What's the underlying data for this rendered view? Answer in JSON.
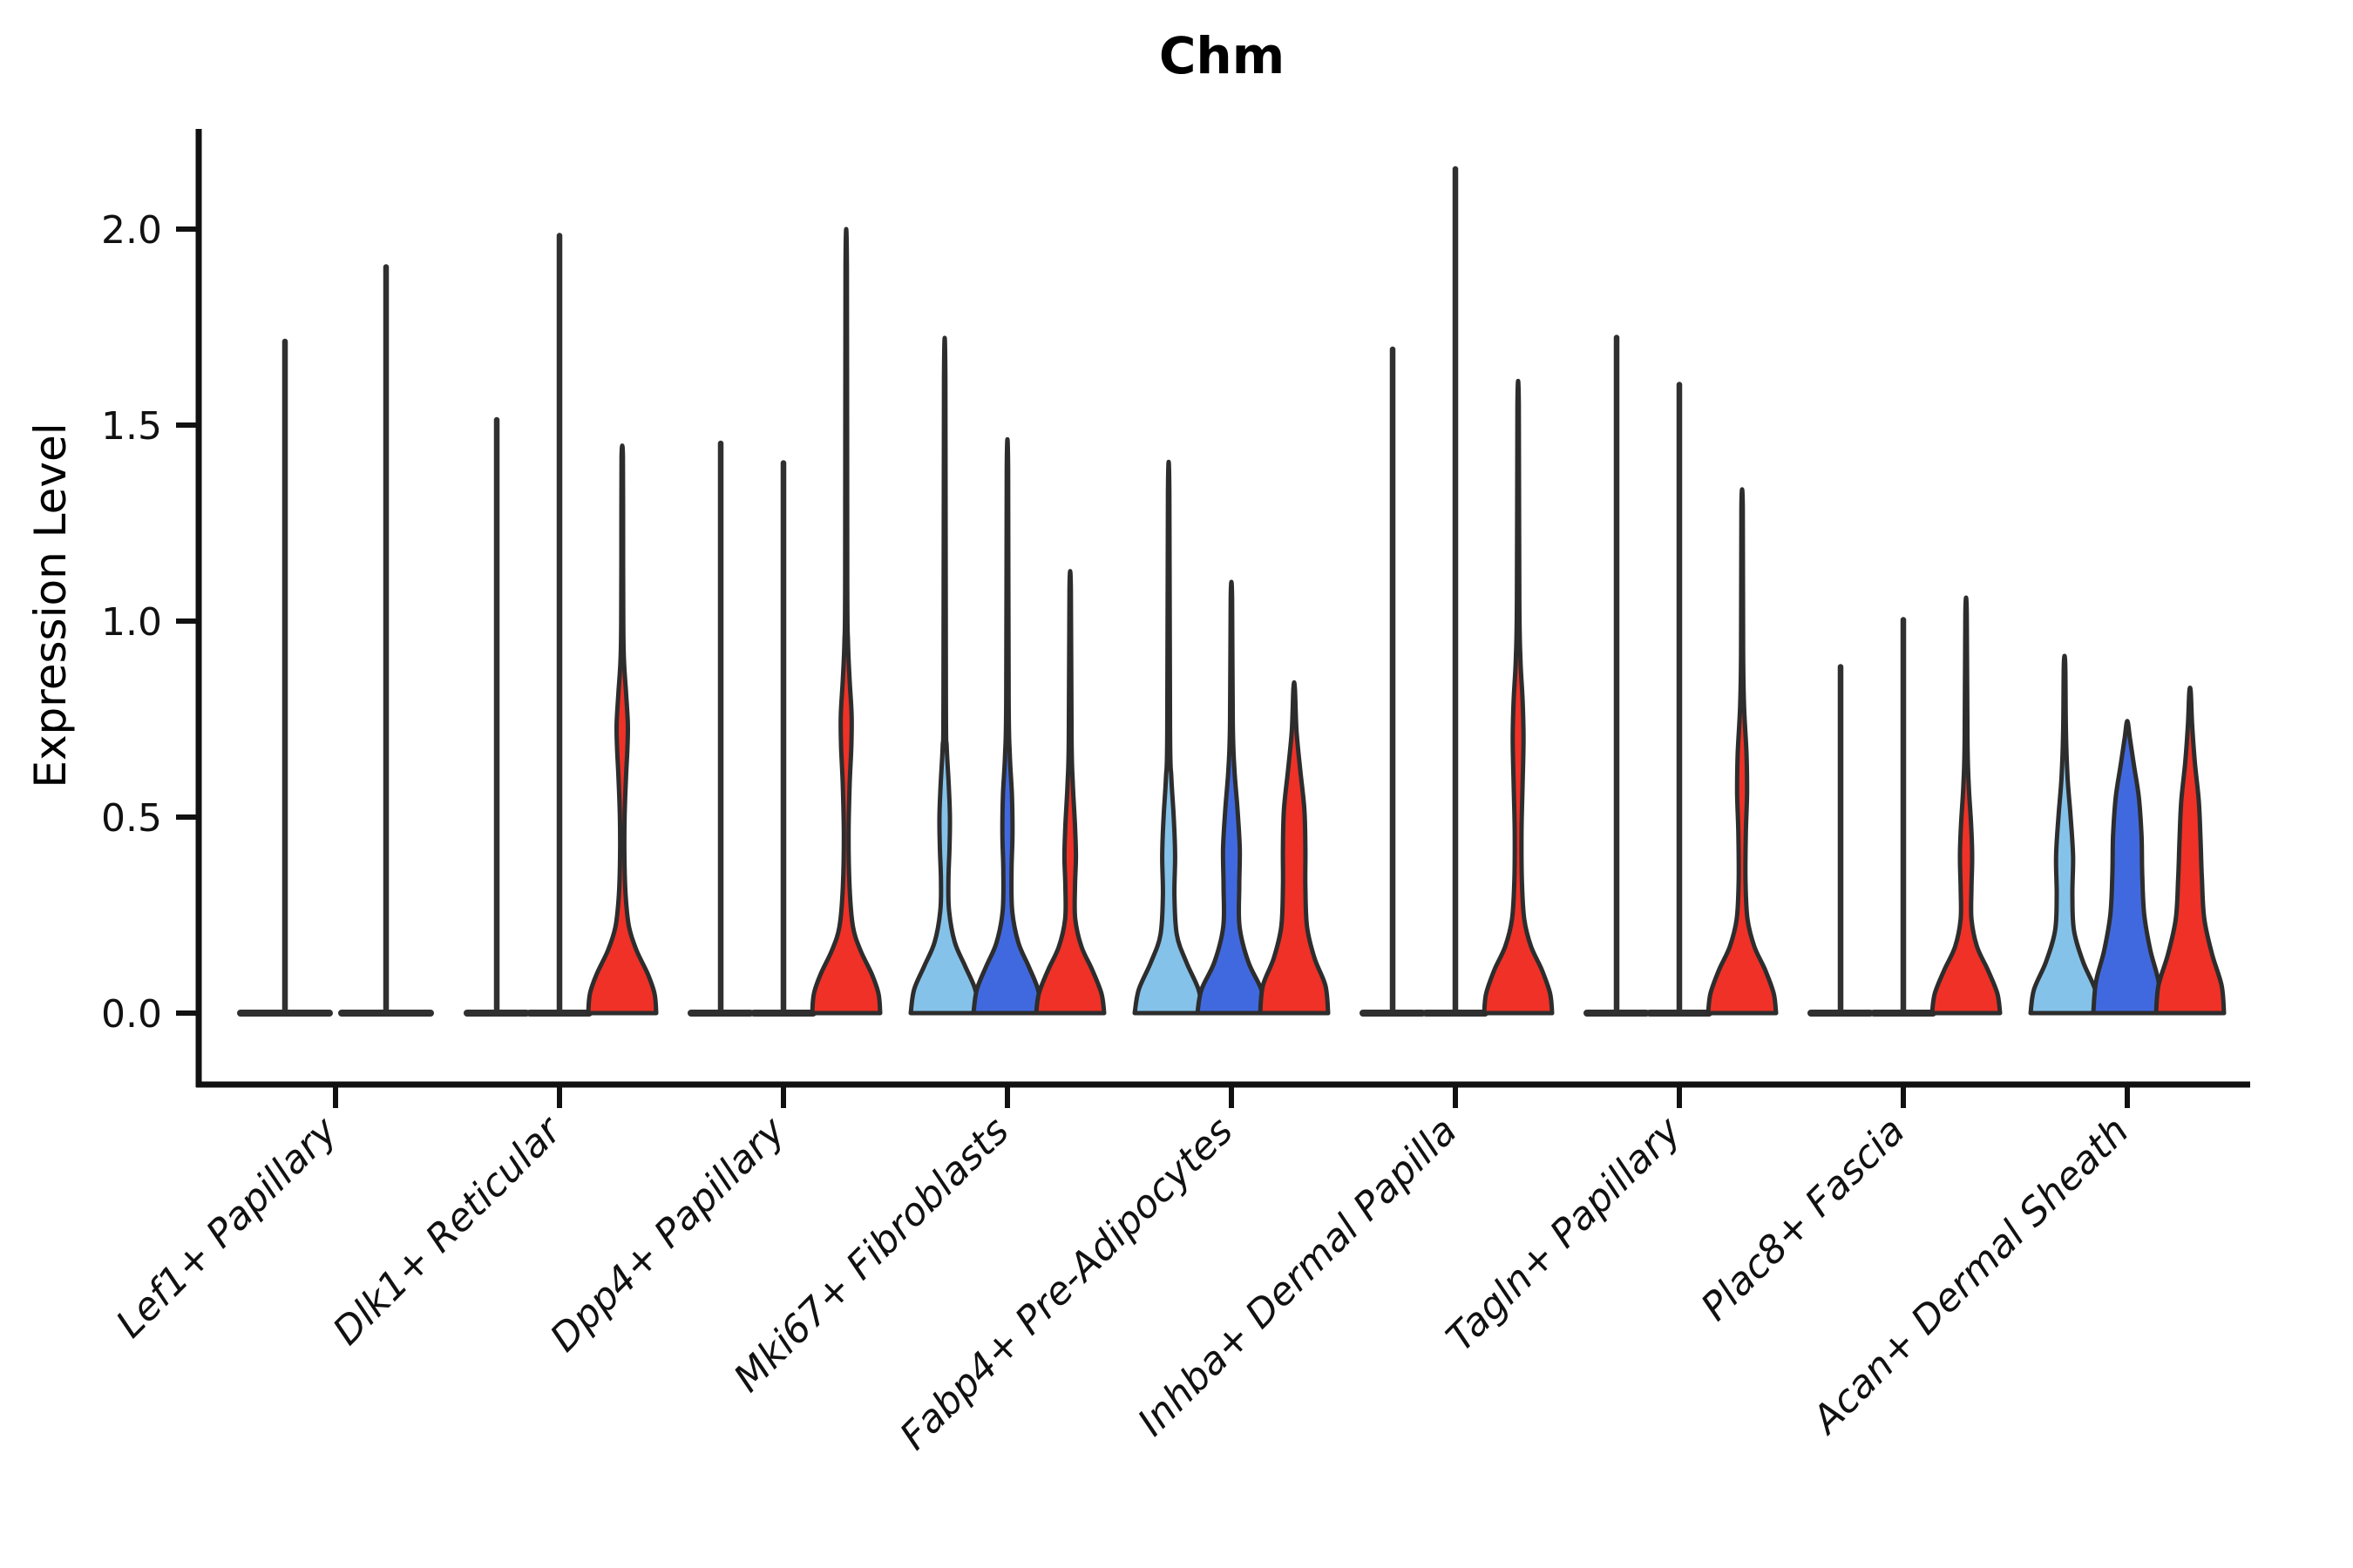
{
  "figure": {
    "title": "Chm",
    "ylabel": "Expression Level"
  },
  "chart_data": {
    "type": "violin",
    "title": "Chm",
    "xlabel": "",
    "ylabel": "Expression Level",
    "yticks": [
      0.0,
      0.5,
      1.0,
      1.5,
      2.0
    ],
    "ylim": [
      -0.18,
      2.25
    ],
    "grid": false,
    "legend": "none",
    "colors": {
      "lightblue": "#85C2E9",
      "darkblue": "#4169DF",
      "red": "#EF3127",
      "outline": "#2D2D2D",
      "spike": "#303030",
      "axis": "#111111"
    },
    "categories": [
      {
        "label": "Lef1+ Papillary",
        "violins": [
          {
            "kind": "spike",
            "color": null,
            "max": 1.72
          },
          {
            "kind": "spike",
            "color": null,
            "max": 1.91
          }
        ]
      },
      {
        "label": "Dlk1+ Reticular",
        "violins": [
          {
            "kind": "spike",
            "color": null,
            "max": 1.52
          },
          {
            "kind": "spike",
            "color": null,
            "max": 1.99
          },
          {
            "kind": "density",
            "color": "red",
            "max": 1.42,
            "profile": [
              [
                0,
                1.0
              ],
              [
                0.05,
                0.95
              ],
              [
                0.1,
                0.75
              ],
              [
                0.16,
                0.42
              ],
              [
                0.22,
                0.2
              ],
              [
                0.3,
                0.1
              ],
              [
                0.4,
                0.065
              ],
              [
                0.5,
                0.07
              ],
              [
                0.6,
                0.11
              ],
              [
                0.68,
                0.155
              ],
              [
                0.74,
                0.165
              ],
              [
                0.82,
                0.11
              ],
              [
                0.9,
                0.05
              ],
              [
                1.0,
                0.03
              ],
              [
                1.2,
                0.025
              ],
              [
                1.42,
                0.02
              ]
            ]
          }
        ]
      },
      {
        "label": "Dpp4+ Papillary",
        "violins": [
          {
            "kind": "spike",
            "color": null,
            "max": 1.46
          },
          {
            "kind": "spike",
            "color": null,
            "max": 1.41
          },
          {
            "kind": "density",
            "color": "red",
            "max": 1.9,
            "profile": [
              [
                0,
                1.0
              ],
              [
                0.05,
                0.95
              ],
              [
                0.1,
                0.75
              ],
              [
                0.16,
                0.42
              ],
              [
                0.22,
                0.2
              ],
              [
                0.32,
                0.1
              ],
              [
                0.45,
                0.07
              ],
              [
                0.58,
                0.1
              ],
              [
                0.68,
                0.15
              ],
              [
                0.76,
                0.16
              ],
              [
                0.85,
                0.1
              ],
              [
                0.95,
                0.05
              ],
              [
                1.1,
                0.03
              ],
              [
                1.9,
                0.02
              ]
            ]
          }
        ]
      },
      {
        "label": "Mki67+ Fibroblasts",
        "violins": [
          {
            "kind": "density",
            "color": "lightblue",
            "max": 1.62,
            "profile": [
              [
                0,
                1.0
              ],
              [
                0.06,
                0.9
              ],
              [
                0.12,
                0.6
              ],
              [
                0.18,
                0.3
              ],
              [
                0.26,
                0.13
              ],
              [
                0.34,
                0.11
              ],
              [
                0.42,
                0.14
              ],
              [
                0.5,
                0.155
              ],
              [
                0.58,
                0.12
              ],
              [
                0.68,
                0.06
              ],
              [
                0.8,
                0.035
              ],
              [
                1.62,
                0.02
              ]
            ]
          },
          {
            "kind": "density",
            "color": "darkblue",
            "max": 1.39,
            "profile": [
              [
                0,
                1.0
              ],
              [
                0.06,
                0.9
              ],
              [
                0.12,
                0.62
              ],
              [
                0.18,
                0.32
              ],
              [
                0.26,
                0.14
              ],
              [
                0.36,
                0.12
              ],
              [
                0.46,
                0.15
              ],
              [
                0.56,
                0.13
              ],
              [
                0.66,
                0.07
              ],
              [
                0.8,
                0.035
              ],
              [
                1.39,
                0.02
              ]
            ]
          },
          {
            "kind": "density",
            "color": "red",
            "max": 1.08,
            "profile": [
              [
                0,
                1.0
              ],
              [
                0.05,
                0.92
              ],
              [
                0.11,
                0.65
              ],
              [
                0.17,
                0.33
              ],
              [
                0.24,
                0.15
              ],
              [
                0.32,
                0.14
              ],
              [
                0.4,
                0.17
              ],
              [
                0.48,
                0.14
              ],
              [
                0.58,
                0.08
              ],
              [
                0.7,
                0.04
              ],
              [
                1.08,
                0.02
              ]
            ]
          }
        ]
      },
      {
        "label": "Fabp4+ Pre-Adipocytes",
        "violins": [
          {
            "kind": "density",
            "color": "lightblue",
            "max": 1.33,
            "profile": [
              [
                0,
                1.0
              ],
              [
                0.06,
                0.88
              ],
              [
                0.13,
                0.52
              ],
              [
                0.2,
                0.24
              ],
              [
                0.3,
                0.17
              ],
              [
                0.4,
                0.19
              ],
              [
                0.5,
                0.15
              ],
              [
                0.6,
                0.08
              ],
              [
                0.72,
                0.04
              ],
              [
                1.33,
                0.02
              ]
            ]
          },
          {
            "kind": "density",
            "color": "darkblue",
            "max": 1.06,
            "profile": [
              [
                0,
                1.0
              ],
              [
                0.06,
                0.88
              ],
              [
                0.13,
                0.5
              ],
              [
                0.22,
                0.24
              ],
              [
                0.32,
                0.23
              ],
              [
                0.42,
                0.245
              ],
              [
                0.52,
                0.18
              ],
              [
                0.62,
                0.09
              ],
              [
                0.74,
                0.04
              ],
              [
                1.06,
                0.02
              ]
            ]
          },
          {
            "kind": "density",
            "color": "red",
            "max": 0.83,
            "profile": [
              [
                0,
                1.0
              ],
              [
                0.07,
                0.92
              ],
              [
                0.14,
                0.6
              ],
              [
                0.22,
                0.38
              ],
              [
                0.32,
                0.33
              ],
              [
                0.42,
                0.33
              ],
              [
                0.52,
                0.3
              ],
              [
                0.62,
                0.18
              ],
              [
                0.72,
                0.07
              ],
              [
                0.83,
                0.02
              ]
            ]
          }
        ]
      },
      {
        "label": "Inhba+ Dermal Papilla",
        "violins": [
          {
            "kind": "spike",
            "color": null,
            "max": 1.7
          },
          {
            "kind": "spike",
            "color": null,
            "max": 2.16
          },
          {
            "kind": "density",
            "color": "red",
            "max": 1.55,
            "profile": [
              [
                0,
                1.0
              ],
              [
                0.05,
                0.94
              ],
              [
                0.11,
                0.7
              ],
              [
                0.17,
                0.38
              ],
              [
                0.24,
                0.18
              ],
              [
                0.34,
                0.11
              ],
              [
                0.46,
                0.1
              ],
              [
                0.58,
                0.13
              ],
              [
                0.7,
                0.16
              ],
              [
                0.8,
                0.13
              ],
              [
                0.9,
                0.07
              ],
              [
                1.05,
                0.035
              ],
              [
                1.55,
                0.02
              ]
            ]
          }
        ]
      },
      {
        "label": "Tagln+ Papillary",
        "violins": [
          {
            "kind": "spike",
            "color": null,
            "max": 1.73
          },
          {
            "kind": "spike",
            "color": null,
            "max": 1.61
          },
          {
            "kind": "density",
            "color": "red",
            "max": 1.29,
            "profile": [
              [
                0,
                1.0
              ],
              [
                0.05,
                0.93
              ],
              [
                0.11,
                0.68
              ],
              [
                0.17,
                0.36
              ],
              [
                0.24,
                0.16
              ],
              [
                0.34,
                0.1
              ],
              [
                0.46,
                0.11
              ],
              [
                0.56,
                0.145
              ],
              [
                0.66,
                0.13
              ],
              [
                0.78,
                0.06
              ],
              [
                0.92,
                0.03
              ],
              [
                1.29,
                0.02
              ]
            ]
          }
        ]
      },
      {
        "label": "Plac8+ Fascia",
        "violins": [
          {
            "kind": "spike",
            "color": null,
            "max": 0.89
          },
          {
            "kind": "spike",
            "color": null,
            "max": 1.01
          },
          {
            "kind": "density",
            "color": "red",
            "max": 1.02,
            "profile": [
              [
                0,
                1.0
              ],
              [
                0.05,
                0.92
              ],
              [
                0.11,
                0.64
              ],
              [
                0.17,
                0.32
              ],
              [
                0.24,
                0.16
              ],
              [
                0.32,
                0.16
              ],
              [
                0.4,
                0.18
              ],
              [
                0.48,
                0.15
              ],
              [
                0.58,
                0.08
              ],
              [
                0.7,
                0.04
              ],
              [
                1.02,
                0.02
              ]
            ]
          }
        ]
      },
      {
        "label": "Acan+ Dermal Sheath",
        "violins": [
          {
            "kind": "density",
            "color": "lightblue",
            "max": 0.89,
            "profile": [
              [
                0,
                1.0
              ],
              [
                0.06,
                0.9
              ],
              [
                0.13,
                0.55
              ],
              [
                0.21,
                0.28
              ],
              [
                0.3,
                0.23
              ],
              [
                0.4,
                0.25
              ],
              [
                0.5,
                0.18
              ],
              [
                0.6,
                0.09
              ],
              [
                0.72,
                0.04
              ],
              [
                0.89,
                0.02
              ]
            ]
          },
          {
            "kind": "density",
            "color": "darkblue",
            "max": 0.74,
            "profile": [
              [
                0,
                1.0
              ],
              [
                0.08,
                0.92
              ],
              [
                0.16,
                0.68
              ],
              [
                0.25,
                0.5
              ],
              [
                0.35,
                0.44
              ],
              [
                0.45,
                0.42
              ],
              [
                0.55,
                0.34
              ],
              [
                0.63,
                0.2
              ],
              [
                0.7,
                0.08
              ],
              [
                0.74,
                0.02
              ]
            ]
          },
          {
            "kind": "density",
            "color": "red",
            "max": 0.82,
            "profile": [
              [
                0,
                1.0
              ],
              [
                0.07,
                0.93
              ],
              [
                0.15,
                0.65
              ],
              [
                0.24,
                0.42
              ],
              [
                0.34,
                0.35
              ],
              [
                0.44,
                0.31
              ],
              [
                0.54,
                0.26
              ],
              [
                0.64,
                0.14
              ],
              [
                0.74,
                0.06
              ],
              [
                0.82,
                0.02
              ]
            ]
          }
        ]
      }
    ]
  }
}
